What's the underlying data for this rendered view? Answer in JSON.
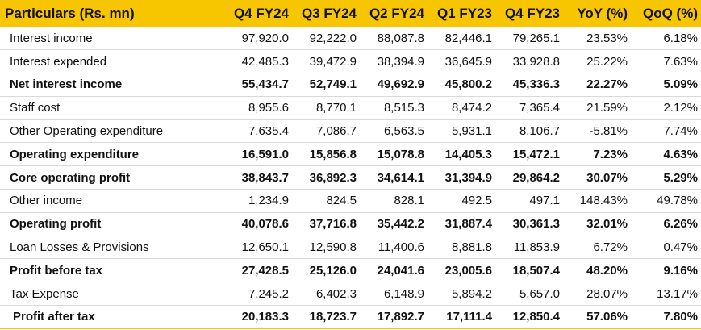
{
  "table": {
    "headers": [
      "Particulars (Rs. mn)",
      "Q4 FY24",
      "Q3 FY24",
      "Q2 FY24",
      "Q1 FY23",
      "Q4 FY23",
      "YoY (%)",
      "QoQ (%)"
    ],
    "rows": [
      {
        "label": "Interest income",
        "bold": false,
        "values": [
          "97,920.0",
          "92,222.0",
          "88,087.8",
          "82,446.1",
          "79,265.1",
          "23.53%",
          "6.18%"
        ]
      },
      {
        "label": "Interest expended",
        "bold": false,
        "values": [
          "42,485.3",
          "39,472.9",
          "38,394.9",
          "36,645.9",
          "33,928.8",
          "25.22%",
          "7.63%"
        ]
      },
      {
        "label": "Net interest income",
        "bold": true,
        "values": [
          "55,434.7",
          "52,749.1",
          "49,692.9",
          "45,800.2",
          "45,336.3",
          "22.27%",
          "5.09%"
        ]
      },
      {
        "label": "Staff cost",
        "bold": false,
        "values": [
          "8,955.6",
          "8,770.1",
          "8,515.3",
          "8,474.2",
          "7,365.4",
          "21.59%",
          "2.12%"
        ]
      },
      {
        "label": "Other Operating expenditure",
        "bold": false,
        "values": [
          "7,635.4",
          "7,086.7",
          "6,563.5",
          "5,931.1",
          "8,106.7",
          "-5.81%",
          "7.74%"
        ]
      },
      {
        "label": "Operating expenditure",
        "bold": true,
        "values": [
          "16,591.0",
          "15,856.8",
          "15,078.8",
          "14,405.3",
          "15,472.1",
          "7.23%",
          "4.63%"
        ]
      },
      {
        "label": "Core operating profit",
        "bold": true,
        "values": [
          "38,843.7",
          "36,892.3",
          "34,614.1",
          "31,394.9",
          "29,864.2",
          "30.07%",
          "5.29%"
        ]
      },
      {
        "label": "Other income",
        "bold": false,
        "values": [
          "1,234.9",
          "824.5",
          "828.1",
          "492.5",
          "497.1",
          "148.43%",
          "49.78%"
        ]
      },
      {
        "label": "Operating profit",
        "bold": true,
        "values": [
          "40,078.6",
          "37,716.8",
          "35,442.2",
          "31,887.4",
          "30,361.3",
          "32.01%",
          "6.26%"
        ]
      },
      {
        "label": "Loan Losses & Provisions",
        "bold": false,
        "values": [
          "12,650.1",
          "12,590.8",
          "11,400.6",
          "8,881.8",
          "11,853.9",
          "6.72%",
          "0.47%"
        ]
      },
      {
        "label": "Profit before tax",
        "bold": true,
        "values": [
          "27,428.5",
          "25,126.0",
          "24,041.6",
          "23,005.6",
          "18,507.4",
          "48.20%",
          "9.16%"
        ]
      },
      {
        "label": "Tax Expense",
        "bold": false,
        "values": [
          "7,245.2",
          "6,402.3",
          "6,148.9",
          "5,894.2",
          "5,657.0",
          "28.07%",
          "13.17%"
        ]
      },
      {
        "label": "Profit after tax",
        "bold": true,
        "values": [
          "20,183.3",
          "18,723.7",
          "17,892.7",
          "17,111.4",
          "12,850.4",
          "57.06%",
          "7.80%"
        ]
      }
    ]
  },
  "colors": {
    "header_bg": "#f7c600",
    "text": "#111111",
    "row_border": "#d9d9d9"
  }
}
